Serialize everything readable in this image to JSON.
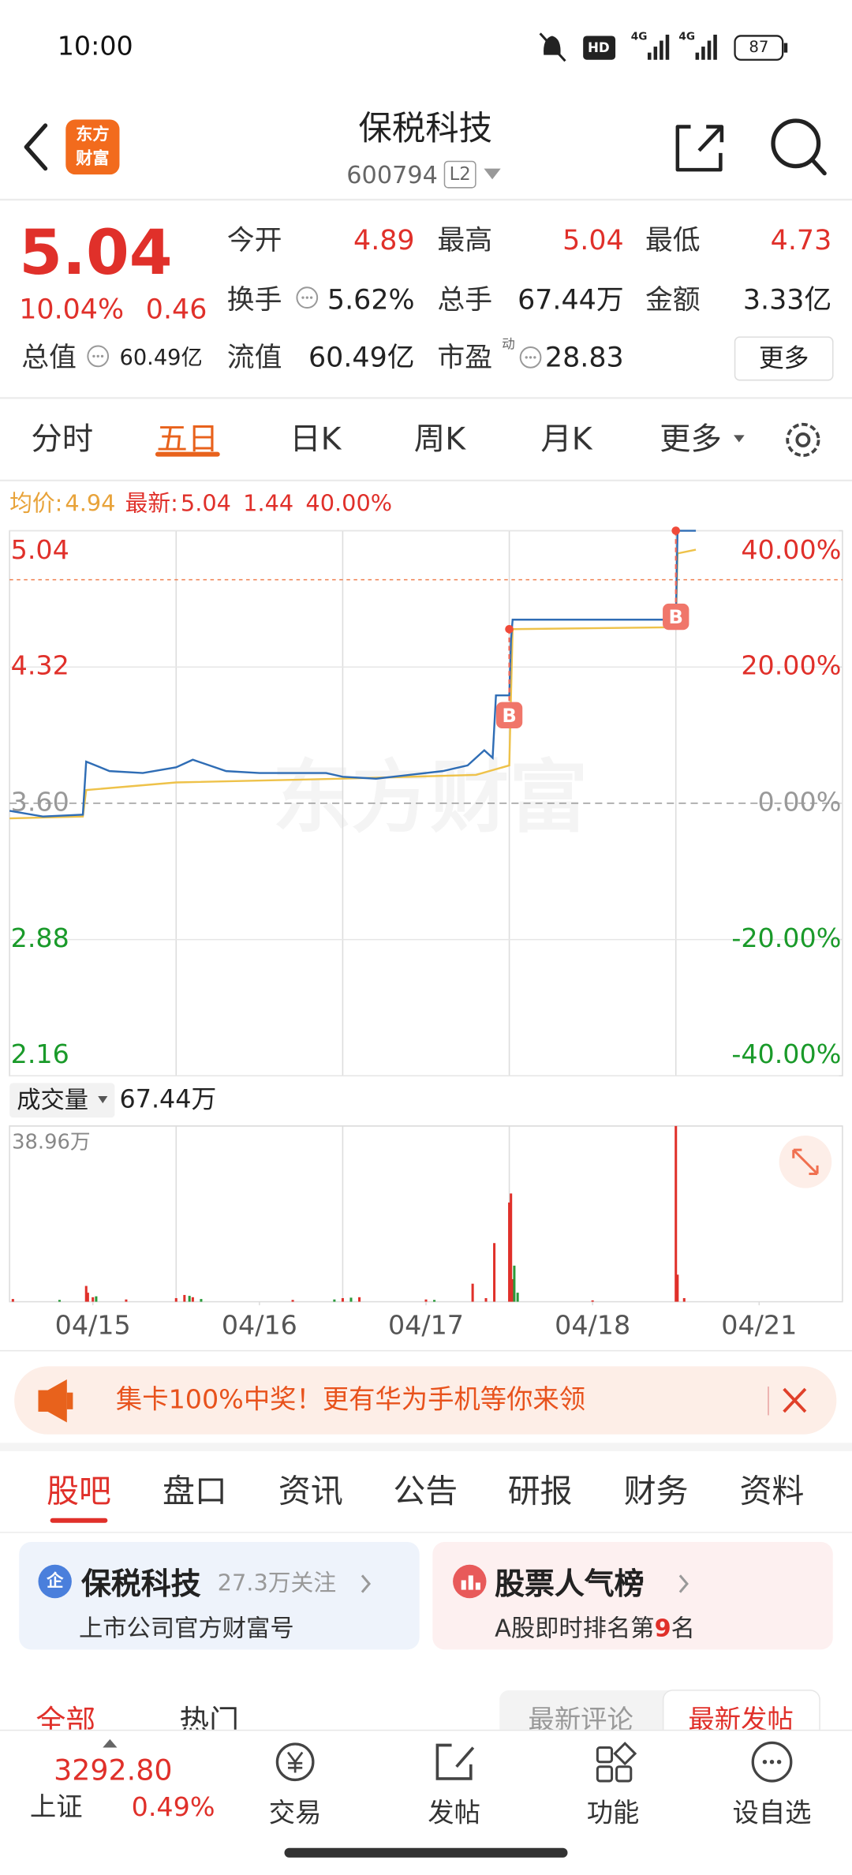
{
  "status": {
    "time": "10:00",
    "hd": "HD",
    "net1": "4G",
    "net2": "4G",
    "battery": "87"
  },
  "header": {
    "logo_top": "东方",
    "logo_bottom": "财富",
    "title": "保税科技",
    "code": "600794",
    "level": "L2"
  },
  "quote": {
    "price": "5.04",
    "change_pct": "10.04%",
    "change": "0.46",
    "fields": [
      {
        "label": "今开",
        "value": "4.89"
      },
      {
        "label": "最高",
        "value": "5.04"
      },
      {
        "label": "最低",
        "value": "4.73"
      },
      {
        "label": "换手",
        "value": "5.62%"
      },
      {
        "label": "总手",
        "value": "67.44万"
      },
      {
        "label": "金额",
        "value": "3.33亿"
      },
      {
        "label": "总值",
        "value": "60.49亿"
      },
      {
        "label": "流值",
        "value": "60.49亿"
      },
      {
        "label": "市盈",
        "value": "28.83"
      }
    ],
    "pe_tag": "动",
    "more": "更多"
  },
  "tabs": {
    "items": [
      "分时",
      "五日",
      "日K",
      "周K",
      "月K",
      "更多"
    ],
    "active": 1
  },
  "info": {
    "avg_label": "均价:",
    "avg": "4.94",
    "latest_label": "最新:",
    "latest": "5.04",
    "change": "1.44",
    "change_pct": "40.00%"
  },
  "watermark": "东方财富",
  "chart_data": [
    {
      "type": "line",
      "xlim": [
        0,
        5
      ],
      "ylim": [
        2.16,
        5.04
      ],
      "yticks": [
        2.16,
        2.88,
        {
          "value": 3.6,
          "label": "3.60"
        },
        4.32,
        5.04
      ],
      "y2lim": [
        -40,
        40
      ],
      "y2ticks": [
        {
          "value": -40,
          "label": "-40.00%"
        },
        {
          "value": -20,
          "label": "-20.00%"
        },
        {
          "value": 0,
          "label": "0.00%"
        },
        {
          "value": 20,
          "label": "20.00%"
        },
        {
          "value": 40,
          "label": "40.00%"
        }
      ],
      "series": [
        {
          "color": "#2f6db5",
          "x": [
            0,
            0.2,
            0.44,
            0.46,
            0.6,
            0.8,
            1.0,
            1.1,
            1.3,
            1.5,
            1.7,
            1.9,
            2.0,
            2.2,
            2.4,
            2.6,
            2.75,
            2.85,
            2.9,
            2.92,
            3.0,
            3.01,
            3.02,
            4.0,
            4.01,
            4.12
          ],
          "values": [
            3.56,
            3.53,
            3.54,
            3.82,
            3.77,
            3.76,
            3.79,
            3.83,
            3.77,
            3.76,
            3.76,
            3.76,
            3.74,
            3.73,
            3.75,
            3.77,
            3.8,
            3.88,
            3.84,
            4.17,
            4.17,
            4.46,
            4.57,
            4.57,
            5.04,
            5.04
          ]
        },
        {
          "color": "#eec24a",
          "x": [
            0,
            0.44,
            0.46,
            1.0,
            2.0,
            2.8,
            3.0,
            3.02,
            4.0,
            4.01,
            4.12
          ],
          "values": [
            3.52,
            3.53,
            3.67,
            3.71,
            3.73,
            3.75,
            3.8,
            4.52,
            4.53,
            4.92,
            4.94
          ]
        }
      ],
      "markers": [
        {
          "x": 3.0,
          "y": 4.52,
          "label": "B"
        },
        {
          "x": 4.0,
          "y": 5.04,
          "label": "B"
        }
      ]
    },
    {
      "type": "bar",
      "title": "成交量",
      "total": "67.44万",
      "xlim": [
        0,
        5
      ],
      "ylim": [
        0,
        38.96
      ],
      "yticks": [
        {
          "value": 38.96,
          "label": "38.96万"
        }
      ],
      "xticks": [
        {
          "value": 0.5,
          "label": "04/15"
        },
        {
          "value": 1.5,
          "label": "04/16"
        },
        {
          "value": 2.5,
          "label": "04/17"
        },
        {
          "value": 3.5,
          "label": "04/18"
        },
        {
          "value": 4.5,
          "label": "04/21"
        }
      ],
      "series": [
        {
          "color": "#e0302a",
          "x": [
            0.02,
            0.46,
            0.47,
            0.5,
            0.7,
            1.0,
            1.05,
            1.1,
            1.7,
            2.0,
            2.1,
            2.5,
            2.78,
            2.86,
            2.91,
            3.0,
            3.01,
            3.02,
            3.5,
            4.0,
            4.01,
            4.05
          ],
          "values": [
            0.6,
            3.5,
            2.0,
            1.0,
            0.5,
            0.8,
            1.5,
            1.0,
            0.4,
            0.8,
            1.0,
            0.5,
            4.0,
            0.8,
            13.0,
            22.0,
            24.0,
            5.0,
            0.3,
            38.96,
            6.0,
            0.8
          ]
        },
        {
          "color": "#2a9a3a",
          "x": [
            0.3,
            0.52,
            1.08,
            1.15,
            1.95,
            2.05,
            2.55,
            3.03,
            3.05
          ],
          "values": [
            0.4,
            1.2,
            1.3,
            0.6,
            0.5,
            0.9,
            0.4,
            8.0,
            2.0
          ]
        }
      ]
    }
  ],
  "banner": {
    "text": "集卡100%中奖！更有华为手机等你来领"
  },
  "sub_tabs": {
    "items": [
      "股吧",
      "盘口",
      "资讯",
      "公告",
      "研报",
      "财务",
      "资料"
    ],
    "active": 0
  },
  "cards": [
    {
      "badge": "企",
      "title": "保税科技",
      "meta": "27.3万关注",
      "subtitle": "上市公司官方财富号"
    },
    {
      "title": "股票人气榜",
      "subtitle_prefix": "A股即时排名第",
      "rank": "9",
      "subtitle_suffix": "名"
    }
  ],
  "filters": {
    "left": [
      "全部",
      "热门"
    ],
    "right": [
      "最新评论",
      "最新发帖"
    ]
  },
  "bottom_nav": {
    "index_value": "3292.80",
    "index_name": "上证",
    "index_change": "0.49%",
    "items": [
      "交易",
      "发帖",
      "功能",
      "设自选"
    ]
  }
}
